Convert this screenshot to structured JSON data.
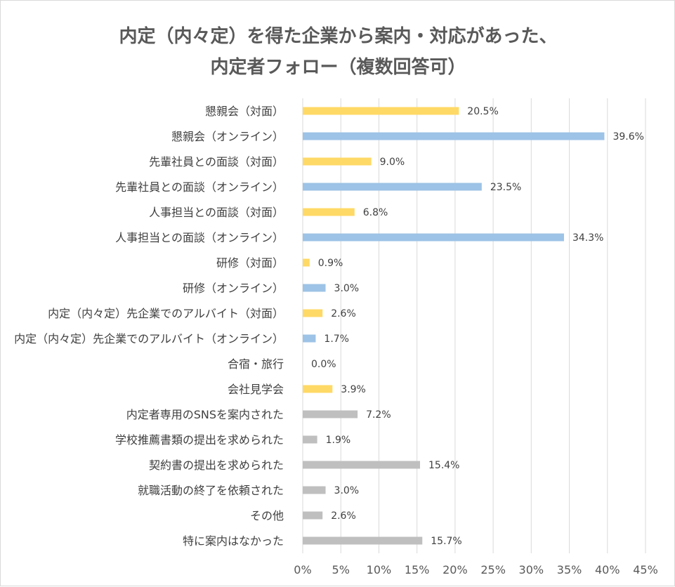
{
  "chart_data": {
    "type": "bar",
    "orientation": "horizontal",
    "title_line1": "内定（内々定）を得た企業から案内・対応があった、",
    "title_line2": "内定者フォロー（複数回答可）",
    "categories": [
      "懇親会（対面）",
      "懇親会（オンライン）",
      "先輩社員との面談（対面）",
      "先輩社員との面談（オンライン）",
      "人事担当との面談（対面）",
      "人事担当との面談（オンライン）",
      "研修（対面）",
      "研修（オンライン）",
      "内定（内々定）先企業でのアルバイト（対面）",
      "内定（内々定）先企業でのアルバイト（オンライン）",
      "合宿・旅行",
      "会社見学会",
      "内定者専用のSNSを案内された",
      "学校推薦書類の提出を求められた",
      "契約書の提出を求められた",
      "就職活動の終了を依頼された",
      "その他",
      "特に案内はなかった"
    ],
    "values": [
      20.5,
      39.6,
      9.0,
      23.5,
      6.8,
      34.3,
      0.9,
      3.0,
      2.6,
      1.7,
      0.0,
      3.9,
      7.2,
      1.9,
      15.4,
      3.0,
      2.6,
      15.7
    ],
    "value_labels": [
      "20.5%",
      "39.6%",
      "9.0%",
      "23.5%",
      "6.8%",
      "34.3%",
      "0.9%",
      "3.0%",
      "2.6%",
      "1.7%",
      "0.0%",
      "3.9%",
      "7.2%",
      "1.9%",
      "15.4%",
      "3.0%",
      "2.6%",
      "15.7%"
    ],
    "bar_colors": [
      "#FFD966",
      "#9DC3E6",
      "#FFD966",
      "#9DC3E6",
      "#FFD966",
      "#9DC3E6",
      "#FFD966",
      "#9DC3E6",
      "#FFD966",
      "#9DC3E6",
      "#FFD966",
      "#FFD966",
      "#BFBFBF",
      "#BFBFBF",
      "#BFBFBF",
      "#BFBFBF",
      "#BFBFBF",
      "#BFBFBF"
    ],
    "xlim": [
      0,
      45
    ],
    "xticks": [
      0,
      5,
      10,
      15,
      20,
      25,
      30,
      35,
      40,
      45
    ],
    "xtick_labels": [
      "0%",
      "5%",
      "10%",
      "15%",
      "20%",
      "25%",
      "30%",
      "35%",
      "40%",
      "45%"
    ],
    "grid": true,
    "gridline_color": "#D9D9D9",
    "legend": "none"
  }
}
